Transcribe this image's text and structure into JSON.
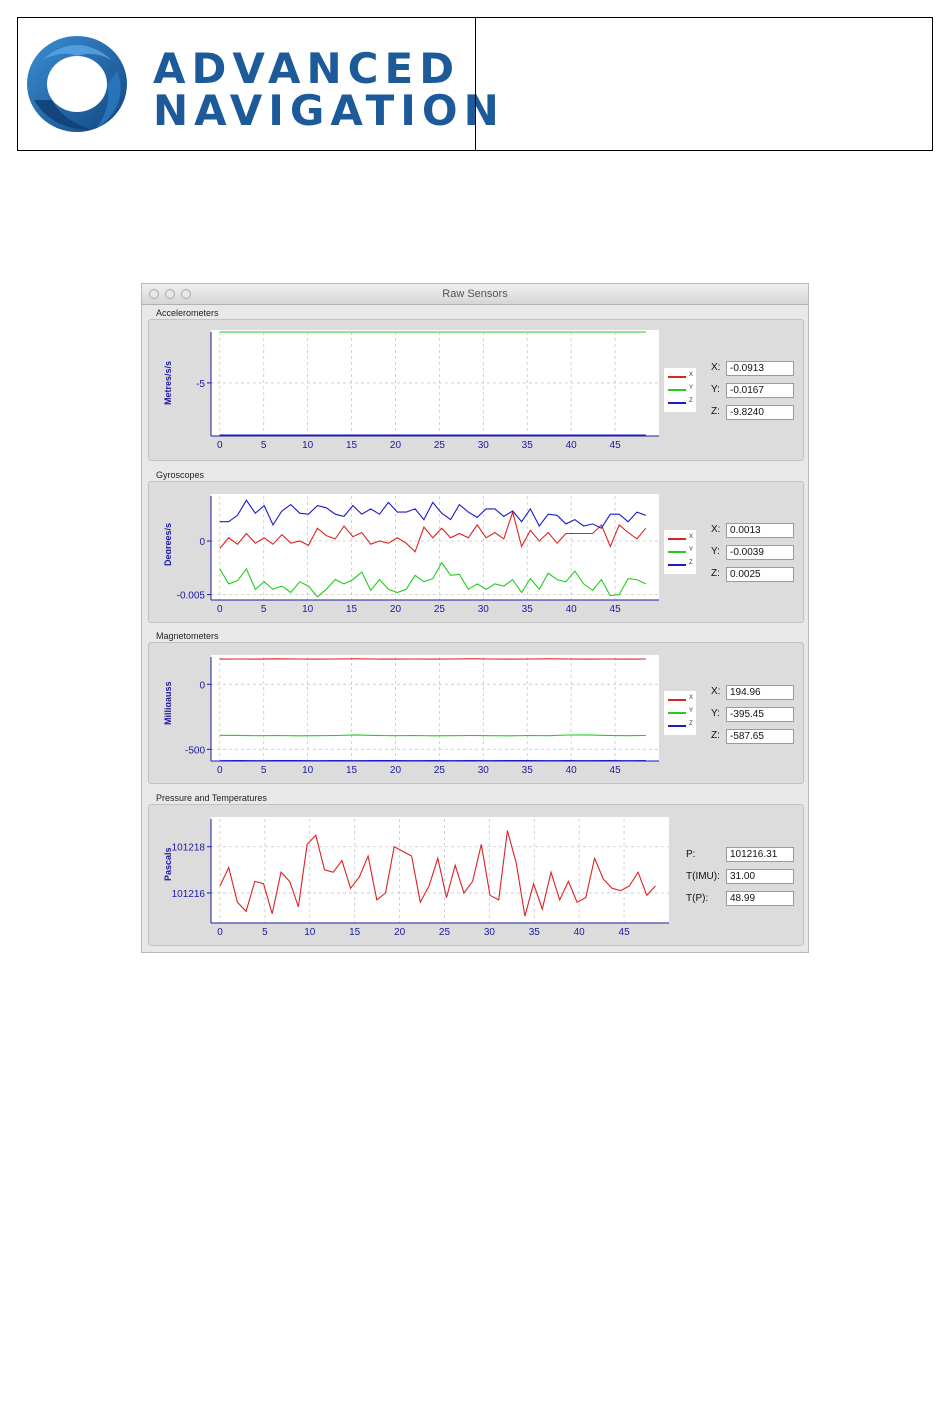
{
  "header": {
    "logo_line1": "ADVANCED",
    "logo_line2": "NAVIGATION",
    "brand_color": "#1d5a9a"
  },
  "window": {
    "title": "Raw Sensors"
  },
  "accelerometers": {
    "section_title": "Accelerometers",
    "x_label": "X:",
    "y_label": "Y:",
    "z_label": "Z:",
    "x_value": "-0.0913",
    "y_value": "-0.0167",
    "z_value": "-9.8240",
    "chart_data": {
      "type": "line",
      "ylabel": "Metres/s/s",
      "x_ticks": [
        0,
        5,
        10,
        15,
        20,
        25,
        30,
        35,
        40,
        45
      ],
      "xlim": [
        -1,
        50
      ],
      "y_ticks": [
        -5
      ],
      "ylim": [
        -9.9,
        -0.3
      ],
      "legend": [
        "X",
        "Y",
        "Z"
      ],
      "legend_position": "right",
      "series": [
        {
          "name": "X",
          "color": "#dd2222",
          "values": [
            -0.09,
            -0.09,
            -0.09,
            -0.09,
            -0.09,
            -0.09,
            -0.09,
            -0.09,
            -0.09,
            -0.09,
            -0.09
          ]
        },
        {
          "name": "Y",
          "color": "#22cc22",
          "values": [
            -0.02,
            -0.02,
            -0.02,
            -0.02,
            -0.02,
            -0.02,
            -0.02,
            -0.02,
            -0.02,
            -0.02,
            -0.02
          ]
        },
        {
          "name": "Z",
          "color": "#1a1acc",
          "values": [
            -9.82,
            -9.82,
            -9.82,
            -9.82,
            -9.82,
            -9.82,
            -9.82,
            -9.82,
            -9.82,
            -9.82,
            -9.82
          ]
        }
      ]
    }
  },
  "gyroscopes": {
    "section_title": "Gyroscopes",
    "x_label": "X:",
    "y_label": "Y:",
    "z_label": "Z:",
    "x_value": "0.0013",
    "y_value": "-0.0039",
    "z_value": "0.0025",
    "chart_data": {
      "type": "line",
      "ylabel": "Degrees/s",
      "x_ticks": [
        0,
        5,
        10,
        15,
        20,
        25,
        30,
        35,
        40,
        45
      ],
      "xlim": [
        -1,
        50
      ],
      "y_ticks": [
        0,
        -0.005
      ],
      "y_tick_labels": [
        "0",
        "-0.005"
      ],
      "ylim": [
        -0.0055,
        0.0042
      ],
      "legend": [
        "X",
        "Y",
        "Z"
      ],
      "legend_position": "right",
      "series": [
        {
          "name": "X",
          "color": "#dd2222",
          "values": [
            -0.0007,
            0.0003,
            -0.0003,
            0.0007,
            -0.0002,
            0.0003,
            -0.0003,
            0.0006,
            -0.0002,
            0.0,
            -0.0004,
            0.0012,
            0.0005,
            0.0002,
            0.0014,
            0.0004,
            0.0008,
            -0.0003,
            0.0,
            -0.0002,
            0.0003,
            -0.0002,
            -0.001,
            0.0013,
            0.0003,
            0.0012,
            0.0003,
            0.0007,
            0.0003,
            0.0015,
            0.0003,
            0.0008,
            0.0002,
            0.0027,
            -0.0005,
            0.001,
            0.0,
            0.0008,
            -0.0002,
            0.0007,
            0.0007,
            0.0007,
            0.0007,
            0.0015,
            -0.0005,
            0.0015,
            0.0008,
            0.0002,
            0.0012
          ]
        },
        {
          "name": "Y",
          "color": "#22cc22",
          "values": [
            -0.0026,
            -0.004,
            -0.0037,
            -0.0026,
            -0.0045,
            -0.0038,
            -0.0045,
            -0.0042,
            -0.0048,
            -0.0038,
            -0.0042,
            -0.0052,
            -0.0045,
            -0.0036,
            -0.004,
            -0.0036,
            -0.0029,
            -0.0046,
            -0.0036,
            -0.0045,
            -0.0048,
            -0.0045,
            -0.0032,
            -0.0038,
            -0.0035,
            -0.002,
            -0.0032,
            -0.0031,
            -0.0045,
            -0.004,
            -0.0045,
            -0.004,
            -0.0042,
            -0.0036,
            -0.0048,
            -0.0035,
            -0.0045,
            -0.003,
            -0.0036,
            -0.0038,
            -0.0028,
            -0.004,
            -0.0046,
            -0.0036,
            -0.0051,
            -0.005,
            -0.0035,
            -0.0036,
            -0.004
          ]
        },
        {
          "name": "Z",
          "color": "#1a1acc",
          "values": [
            0.0018,
            0.0018,
            0.0024,
            0.0038,
            0.0026,
            0.0033,
            0.0015,
            0.0028,
            0.0034,
            0.0026,
            0.0025,
            0.0033,
            0.0031,
            0.0025,
            0.0023,
            0.0033,
            0.0025,
            0.003,
            0.0025,
            0.0036,
            0.0027,
            0.0027,
            0.003,
            0.002,
            0.0036,
            0.0026,
            0.002,
            0.0034,
            0.0027,
            0.0022,
            0.003,
            0.003,
            0.0023,
            0.0028,
            0.0018,
            0.003,
            0.0014,
            0.0025,
            0.0024,
            0.0016,
            0.002,
            0.0014,
            0.0016,
            0.0012,
            0.0025,
            0.0025,
            0.0018,
            0.0027,
            0.0024
          ]
        }
      ]
    }
  },
  "magnetometers": {
    "section_title": "Magnetometers",
    "x_label": "X:",
    "y_label": "Y:",
    "z_label": "Z:",
    "x_value": "194.96",
    "y_value": "-395.45",
    "z_value": "-587.65",
    "chart_data": {
      "type": "line",
      "ylabel": "Milligauss",
      "x_ticks": [
        0,
        5,
        10,
        15,
        20,
        25,
        30,
        35,
        40,
        45
      ],
      "xlim": [
        -1,
        50
      ],
      "y_ticks": [
        0,
        -500
      ],
      "ylim": [
        -590,
        210
      ],
      "legend": [
        "X",
        "Y",
        "Z"
      ],
      "legend_position": "right",
      "series": [
        {
          "name": "X",
          "color": "#dd2222",
          "values": [
            194,
            195,
            194,
            196,
            195,
            194,
            195,
            196,
            195,
            194,
            195,
            194,
            195,
            196,
            195,
            194,
            195,
            196,
            195,
            194,
            195,
            194,
            195
          ]
        },
        {
          "name": "Y",
          "color": "#22cc22",
          "values": [
            -392,
            -393,
            -395,
            -394,
            -396,
            -395,
            -394,
            -389,
            -393,
            -395,
            -394,
            -396,
            -395,
            -394,
            -395,
            -396,
            -394,
            -395,
            -390,
            -389,
            -393,
            -395,
            -394
          ]
        },
        {
          "name": "Z",
          "color": "#1a1acc",
          "values": [
            -588,
            -587,
            -588,
            -586,
            -587,
            -588,
            -587,
            -588,
            -586,
            -587,
            -588,
            -587,
            -588,
            -587,
            -588,
            -586,
            -587,
            -588,
            -587,
            -588,
            -587,
            -588,
            -587
          ]
        }
      ]
    }
  },
  "pressure": {
    "section_title": "Pressure and Temperatures",
    "p_label": "P:",
    "timu_label": "T(IMU):",
    "tp_label": "T(P):",
    "p_value": "101216.31",
    "timu_value": "31.00",
    "tp_value": "48.99",
    "chart_data": {
      "type": "line",
      "ylabel": "Pascals",
      "x_ticks": [
        0,
        5,
        10,
        15,
        20,
        25,
        30,
        35,
        40,
        45
      ],
      "xlim": [
        -1,
        50
      ],
      "y_ticks": [
        101218,
        101216
      ],
      "ylim": [
        101214.7,
        101219.2
      ],
      "series": [
        {
          "name": "P",
          "color": "#dd2222",
          "values": [
            101216.3,
            101217.1,
            101215.6,
            101215.2,
            101216.5,
            101216.4,
            101215.1,
            101216.9,
            101216.5,
            101215.4,
            101218.1,
            101218.5,
            101217.0,
            101216.9,
            101217.4,
            101216.2,
            101216.7,
            101217.6,
            101215.7,
            101216.0,
            101218.0,
            101217.8,
            101217.6,
            101215.6,
            101216.3,
            101217.5,
            101215.8,
            101217.2,
            101216.0,
            101216.5,
            101218.1,
            101215.9,
            101215.7,
            101218.7,
            101217.3,
            101215.0,
            101216.4,
            101215.3,
            101216.9,
            101215.7,
            101216.5,
            101215.6,
            101215.8,
            101217.5,
            101216.6,
            101216.2,
            101216.1,
            101216.3,
            101216.9,
            101215.9,
            101216.3
          ]
        }
      ]
    }
  }
}
